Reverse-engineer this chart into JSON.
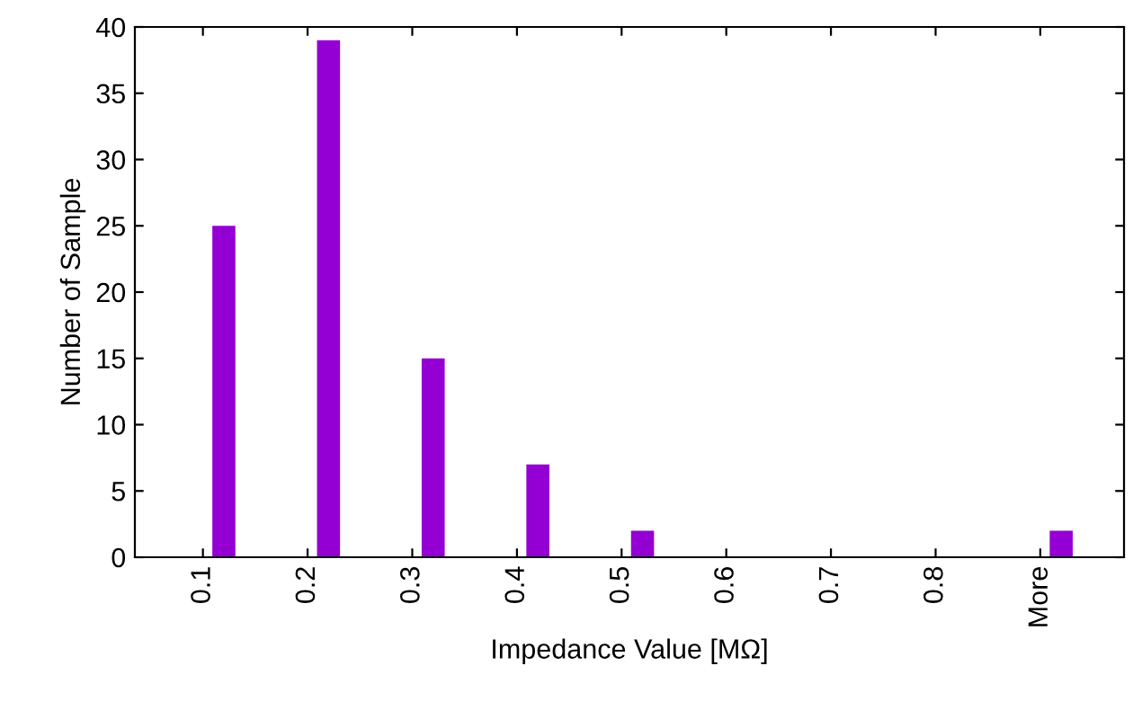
{
  "chart_data": {
    "type": "bar",
    "xlabel": "Impedance Value [MΩ]",
    "ylabel": "Number of Sample",
    "categories": [
      "0.1",
      "0.2",
      "0.3",
      "0.4",
      "0.5",
      "0.6",
      "0.7",
      "0.8",
      "More"
    ],
    "values": [
      25,
      39,
      15,
      7,
      2,
      0,
      0,
      0,
      2
    ],
    "color": "#9400d3",
    "ylim": [
      0,
      40
    ],
    "yticks": [
      0,
      5,
      10,
      15,
      20,
      25,
      30,
      35,
      40
    ],
    "grid": false,
    "legend": false
  }
}
